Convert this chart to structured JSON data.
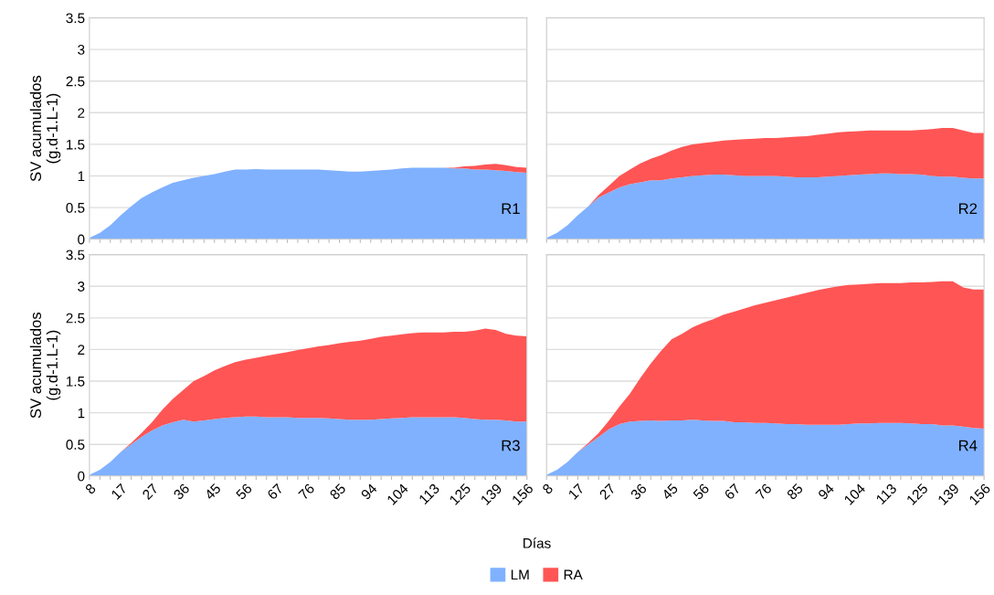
{
  "chart_data": [
    {
      "type": "area",
      "stacked": true,
      "ylabel": "SV acumulados\n(g.d-1.L-1)",
      "annotations": [
        "R1"
      ],
      "grid": "y",
      "legend": "bottom",
      "tick_labels": "y",
      "ylim": [
        0,
        3.5
      ],
      "yticks": [
        0,
        0.5,
        1,
        1.5,
        2,
        2.5,
        3,
        3.5
      ],
      "categories": [
        "8",
        null,
        null,
        "17",
        null,
        null,
        "27",
        null,
        null,
        "36",
        null,
        null,
        "45",
        null,
        null,
        "56",
        null,
        null,
        "67",
        null,
        null,
        "76",
        null,
        null,
        "85",
        null,
        null,
        "94",
        null,
        null,
        "104",
        null,
        null,
        "113",
        null,
        null,
        "125",
        null,
        null,
        "139",
        null,
        null,
        "156"
      ],
      "series": [
        {
          "name": "LM",
          "color": "#80b1ff",
          "values": [
            0.02,
            0.1,
            0.22,
            0.38,
            0.52,
            0.65,
            0.74,
            0.82,
            0.89,
            0.93,
            0.97,
            1.0,
            1.03,
            1.07,
            1.1,
            1.1,
            1.11,
            1.1,
            1.1,
            1.1,
            1.1,
            1.1,
            1.1,
            1.09,
            1.08,
            1.07,
            1.07,
            1.08,
            1.09,
            1.1,
            1.12,
            1.13,
            1.13,
            1.13,
            1.13,
            1.12,
            1.12,
            1.1,
            1.1,
            1.09,
            1.08,
            1.06,
            1.05
          ]
        },
        {
          "name": "RA",
          "color": "#ff5555",
          "values": [
            0,
            0,
            0,
            0,
            0,
            0,
            0,
            0,
            0,
            0,
            0,
            0,
            0,
            0,
            0,
            0,
            0,
            0,
            0,
            0,
            0,
            0,
            0,
            0,
            0,
            0,
            0,
            0,
            0,
            0,
            0,
            0,
            0,
            0,
            0,
            0.01,
            0.03,
            0.06,
            0.08,
            0.1,
            0.09,
            0.08,
            0.08
          ]
        }
      ]
    },
    {
      "type": "area",
      "stacked": true,
      "annotations": [
        "R2"
      ],
      "grid": "y",
      "tick_labels": false,
      "ylim": [
        0,
        3.5
      ],
      "yticks": [
        0,
        0.5,
        1,
        1.5,
        2,
        2.5,
        3,
        3.5
      ],
      "categories": [
        "8",
        null,
        null,
        "17",
        null,
        null,
        "27",
        null,
        null,
        "36",
        null,
        null,
        "45",
        null,
        null,
        "56",
        null,
        null,
        "67",
        null,
        null,
        "76",
        null,
        null,
        "85",
        null,
        null,
        "94",
        null,
        null,
        "104",
        null,
        null,
        "113",
        null,
        null,
        "125",
        null,
        null,
        "139",
        null,
        null,
        "156"
      ],
      "series": [
        {
          "name": "LM",
          "color": "#80b1ff",
          "values": [
            0.02,
            0.1,
            0.22,
            0.38,
            0.52,
            0.66,
            0.74,
            0.82,
            0.87,
            0.9,
            0.93,
            0.93,
            0.96,
            0.98,
            1.0,
            1.01,
            1.02,
            1.02,
            1.01,
            1.0,
            1.0,
            1.0,
            1.0,
            0.99,
            0.98,
            0.98,
            0.98,
            0.99,
            1.0,
            1.01,
            1.02,
            1.03,
            1.04,
            1.04,
            1.03,
            1.03,
            1.02,
            1.0,
            0.99,
            0.99,
            0.97,
            0.96,
            0.96
          ]
        },
        {
          "name": "RA",
          "color": "#ff5555",
          "values": [
            0,
            0,
            0,
            0,
            0,
            0.04,
            0.11,
            0.18,
            0.23,
            0.3,
            0.34,
            0.4,
            0.44,
            0.48,
            0.5,
            0.51,
            0.52,
            0.54,
            0.56,
            0.58,
            0.59,
            0.6,
            0.6,
            0.62,
            0.64,
            0.65,
            0.67,
            0.68,
            0.69,
            0.69,
            0.69,
            0.69,
            0.68,
            0.68,
            0.69,
            0.69,
            0.71,
            0.74,
            0.77,
            0.77,
            0.75,
            0.72,
            0.72
          ]
        }
      ]
    },
    {
      "type": "area",
      "stacked": true,
      "ylabel": "SV acumulados\n(g.d-1.L-1)",
      "xlabel": "Días",
      "annotations": [
        "R3"
      ],
      "grid": "y",
      "ylim": [
        0,
        3.5
      ],
      "yticks": [
        0,
        0.5,
        1,
        1.5,
        2,
        2.5,
        3,
        3.5
      ],
      "categories": [
        "8",
        null,
        null,
        "17",
        null,
        null,
        "27",
        null,
        null,
        "36",
        null,
        null,
        "45",
        null,
        null,
        "56",
        null,
        null,
        "67",
        null,
        null,
        "76",
        null,
        null,
        "85",
        null,
        null,
        "94",
        null,
        null,
        "104",
        null,
        null,
        "113",
        null,
        null,
        "125",
        null,
        null,
        "139",
        null,
        null,
        "156"
      ],
      "series": [
        {
          "name": "LM",
          "color": "#80b1ff",
          "values": [
            0.02,
            0.1,
            0.22,
            0.38,
            0.5,
            0.62,
            0.72,
            0.8,
            0.85,
            0.89,
            0.86,
            0.88,
            0.9,
            0.92,
            0.93,
            0.94,
            0.94,
            0.93,
            0.93,
            0.93,
            0.92,
            0.92,
            0.92,
            0.91,
            0.9,
            0.89,
            0.89,
            0.89,
            0.9,
            0.91,
            0.92,
            0.93,
            0.93,
            0.93,
            0.93,
            0.93,
            0.92,
            0.9,
            0.89,
            0.89,
            0.88,
            0.86,
            0.86
          ]
        },
        {
          "name": "RA",
          "color": "#ff5555",
          "values": [
            0,
            0,
            0,
            0,
            0.02,
            0.06,
            0.13,
            0.25,
            0.37,
            0.47,
            0.64,
            0.7,
            0.77,
            0.82,
            0.87,
            0.9,
            0.93,
            0.97,
            1.0,
            1.03,
            1.07,
            1.1,
            1.13,
            1.16,
            1.2,
            1.23,
            1.25,
            1.28,
            1.3,
            1.31,
            1.32,
            1.33,
            1.34,
            1.34,
            1.34,
            1.35,
            1.36,
            1.4,
            1.44,
            1.42,
            1.37,
            1.36,
            1.35
          ]
        }
      ]
    },
    {
      "type": "area",
      "stacked": true,
      "annotations": [
        "R4"
      ],
      "grid": "y",
      "tick_labels": "x",
      "ylim": [
        0,
        3.5
      ],
      "yticks": [
        0,
        0.5,
        1,
        1.5,
        2,
        2.5,
        3,
        3.5
      ],
      "categories": [
        "8",
        null,
        null,
        "17",
        null,
        null,
        "27",
        null,
        null,
        "36",
        null,
        null,
        "45",
        null,
        null,
        "56",
        null,
        null,
        "67",
        null,
        null,
        "76",
        null,
        null,
        "85",
        null,
        null,
        "94",
        null,
        null,
        "104",
        null,
        null,
        "113",
        null,
        null,
        "125",
        null,
        null,
        "139",
        null,
        null,
        "156"
      ],
      "series": [
        {
          "name": "LM",
          "color": "#80b1ff",
          "values": [
            0.02,
            0.1,
            0.22,
            0.38,
            0.5,
            0.62,
            0.74,
            0.82,
            0.86,
            0.87,
            0.88,
            0.87,
            0.88,
            0.88,
            0.89,
            0.88,
            0.87,
            0.87,
            0.85,
            0.85,
            0.84,
            0.84,
            0.83,
            0.82,
            0.82,
            0.81,
            0.81,
            0.81,
            0.81,
            0.82,
            0.83,
            0.83,
            0.84,
            0.84,
            0.84,
            0.83,
            0.82,
            0.82,
            0.8,
            0.8,
            0.78,
            0.76,
            0.75
          ]
        },
        {
          "name": "RA",
          "color": "#ff5555",
          "values": [
            0,
            0,
            0,
            0,
            0.02,
            0.06,
            0.14,
            0.28,
            0.44,
            0.68,
            0.9,
            1.11,
            1.28,
            1.37,
            1.46,
            1.54,
            1.61,
            1.68,
            1.75,
            1.8,
            1.86,
            1.9,
            1.95,
            2.0,
            2.04,
            2.09,
            2.13,
            2.16,
            2.19,
            2.2,
            2.2,
            2.21,
            2.21,
            2.21,
            2.21,
            2.23,
            2.24,
            2.25,
            2.28,
            2.28,
            2.2,
            2.19,
            2.2
          ]
        }
      ]
    }
  ]
}
